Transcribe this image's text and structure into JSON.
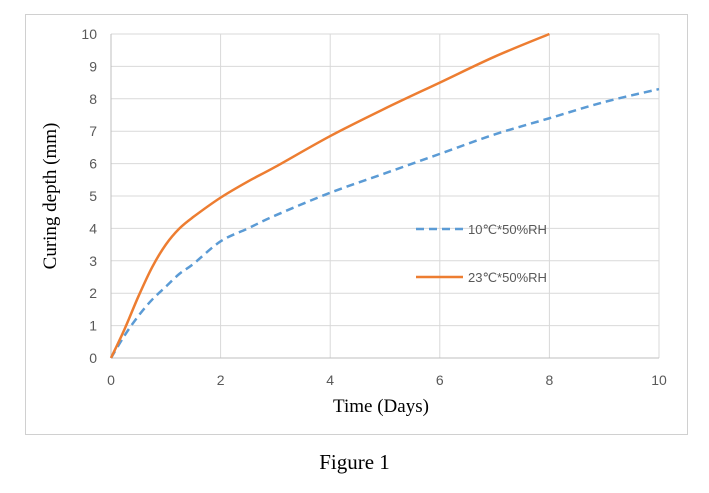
{
  "figure": {
    "caption": "Figure 1"
  },
  "chart_data": {
    "type": "line",
    "title": "",
    "xlabel": "Time (Days)",
    "ylabel": "Curing depth (mm)",
    "xlim": [
      0,
      10
    ],
    "ylim": [
      0,
      10
    ],
    "xticks": [
      0,
      2,
      4,
      6,
      8,
      10
    ],
    "yticks": [
      0,
      1,
      2,
      3,
      4,
      5,
      6,
      7,
      8,
      9,
      10
    ],
    "grid": true,
    "legend_position": "right-middle",
    "series": [
      {
        "name": "10℃*50%RH",
        "color": "#5b9bd5",
        "dash": "dashed",
        "x": [
          0,
          0.25,
          0.5,
          0.75,
          1,
          1.25,
          1.5,
          2,
          2.5,
          3,
          4,
          5,
          6,
          7,
          8,
          9,
          10
        ],
        "y": [
          0,
          0.7,
          1.3,
          1.8,
          2.2,
          2.6,
          2.9,
          3.6,
          4.0,
          4.4,
          5.1,
          5.7,
          6.3,
          6.9,
          7.4,
          7.9,
          8.3
        ]
      },
      {
        "name": "23℃*50%RH",
        "color": "#ed7d31",
        "dash": "solid",
        "x": [
          0,
          0.25,
          0.5,
          0.75,
          1,
          1.25,
          1.5,
          2,
          2.5,
          3,
          4,
          5,
          6,
          7,
          8
        ],
        "y": [
          0,
          0.9,
          1.9,
          2.8,
          3.5,
          4.0,
          4.35,
          4.95,
          5.45,
          5.9,
          6.85,
          7.7,
          8.5,
          9.3,
          10
        ]
      }
    ]
  }
}
